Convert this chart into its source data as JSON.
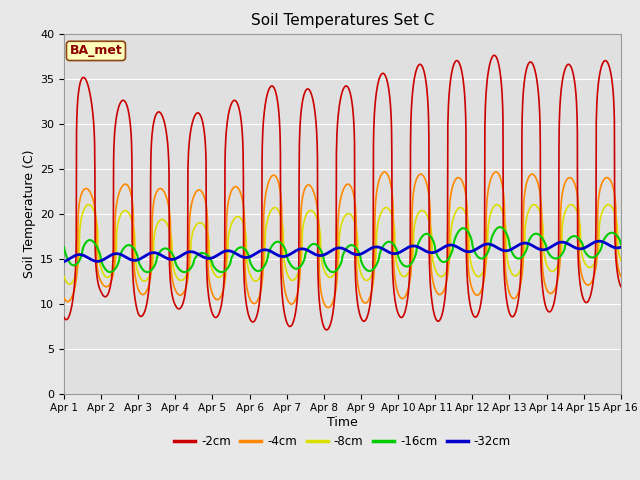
{
  "title": "Soil Temperatures Set C",
  "xlabel": "Time",
  "ylabel": "Soil Temperature (C)",
  "ylim": [
    0,
    40
  ],
  "xlim": [
    0,
    15
  ],
  "fig_bg_color": "#e8e8e8",
  "plot_bg_color": "#e0e0e0",
  "annotation_text": "BA_met",
  "annotation_color": "#8B0000",
  "annotation_bg": "#ffffbb",
  "annotation_edge": "#8B4513",
  "legend_labels": [
    "-2cm",
    "-4cm",
    "-8cm",
    "-16cm",
    "-32cm"
  ],
  "line_colors": [
    "#cc0000",
    "#ff8800",
    "#dddd00",
    "#00cc00",
    "#0000cc"
  ],
  "line_widths": [
    1.2,
    1.2,
    1.2,
    1.5,
    2.0
  ],
  "xtick_labels": [
    "Apr 1",
    "Apr 2",
    "Apr 3",
    "Apr 4",
    "Apr 5",
    "Apr 6",
    "Apr 7",
    "Apr 8",
    "Apr 9",
    "Apr 10",
    "Apr 11",
    "Apr 12",
    "Apr 13",
    "Apr 14",
    "Apr 15",
    "Apr 16"
  ],
  "xtick_positions": [
    0,
    1,
    2,
    3,
    4,
    5,
    6,
    7,
    8,
    9,
    10,
    11,
    12,
    13,
    14,
    15
  ],
  "ytick_positions": [
    0,
    5,
    10,
    15,
    20,
    25,
    30,
    35,
    40
  ],
  "grid_color": "#ffffff",
  "day_peaks_2cm": [
    39,
    32,
    33,
    30,
    32,
    33,
    35,
    33,
    35,
    36,
    37,
    37,
    38,
    36,
    37,
    37
  ],
  "day_mins_2cm": [
    8,
    11,
    8.5,
    9.5,
    8.5,
    8,
    7.5,
    7,
    8,
    8.5,
    8,
    8.5,
    8.5,
    9,
    10,
    11.5
  ],
  "day_peaks_4cm": [
    24,
    22,
    24,
    22,
    23,
    23,
    25,
    22,
    24,
    25,
    24,
    24,
    25,
    24,
    24,
    24
  ],
  "day_mins_4cm": [
    10,
    12,
    11,
    11,
    10.5,
    10,
    10,
    9.5,
    10,
    10.5,
    11,
    11,
    10.5,
    11,
    12,
    12.5
  ],
  "day_peaks_8cm": [
    21,
    21,
    20,
    19,
    19,
    20,
    21,
    20,
    20,
    21,
    20,
    21,
    21,
    21,
    21,
    21
  ],
  "day_mins_8cm": [
    12,
    13,
    12.5,
    12.5,
    13,
    12.5,
    12.5,
    13,
    12.5,
    13,
    13,
    13,
    13,
    13.5,
    14,
    14
  ],
  "day_peaks_16cm": [
    18.5,
    16.5,
    16.5,
    16,
    15.5,
    16.5,
    17,
    16.5,
    16.5,
    17,
    18,
    18.5,
    18.5,
    17.5,
    17.5,
    18
  ],
  "day_mins_16cm": [
    14.5,
    13.5,
    13.5,
    13.5,
    13.5,
    13.5,
    14,
    13.5,
    13.5,
    14,
    14.5,
    15,
    15,
    15,
    15,
    15.5
  ],
  "base_32cm": 15.0,
  "peak_phase": 0.583,
  "sharpness": 3.0
}
